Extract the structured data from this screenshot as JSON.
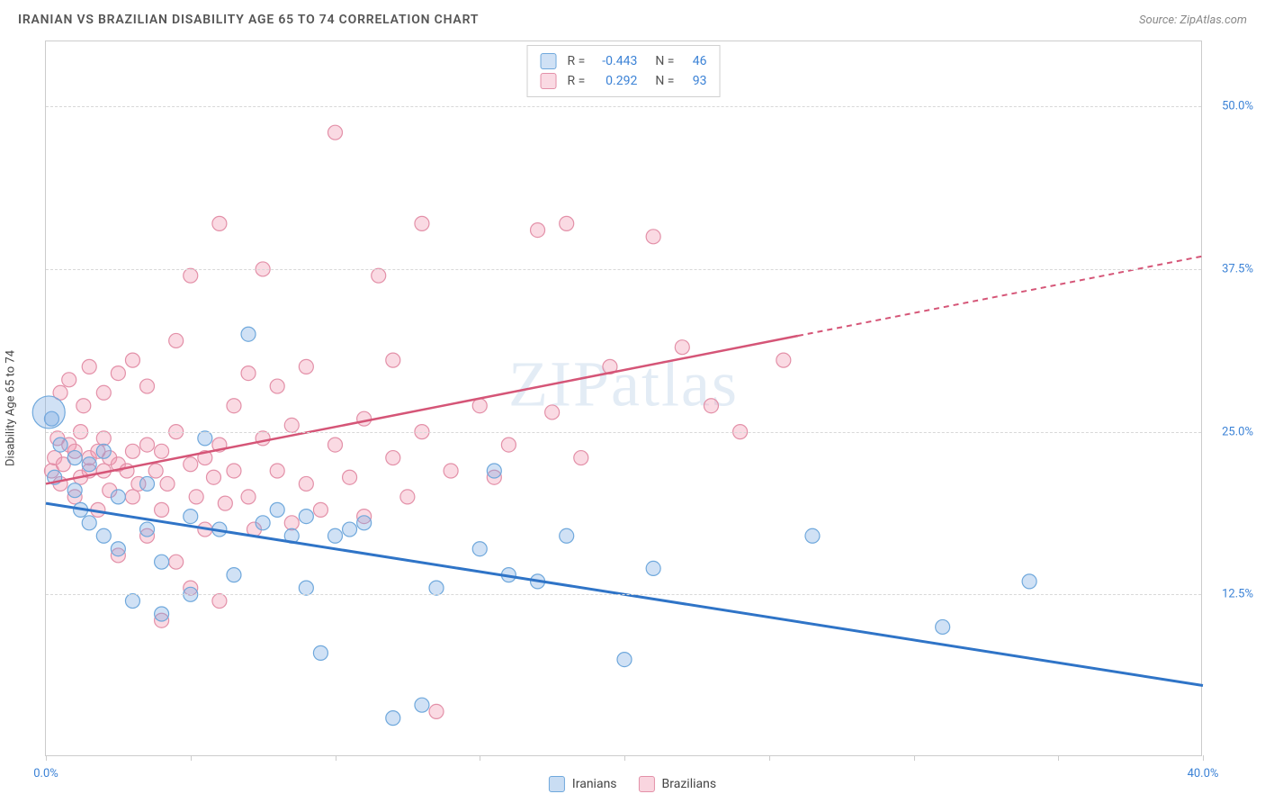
{
  "header": {
    "title": "IRANIAN VS BRAZILIAN DISABILITY AGE 65 TO 74 CORRELATION CHART",
    "source": "Source: ZipAtlas.com"
  },
  "chart": {
    "type": "scatter",
    "ylabel": "Disability Age 65 to 74",
    "watermark": "ZIPatlas",
    "xlim": [
      0,
      40
    ],
    "ylim": [
      0,
      55
    ],
    "x_ticks": [
      0,
      5,
      10,
      15,
      20,
      25,
      30,
      35,
      40
    ],
    "x_tick_labels_shown": {
      "0": "0.0%",
      "40": "40.0%"
    },
    "y_gridlines": [
      12.5,
      25.0,
      37.5,
      50.0
    ],
    "y_tick_labels": [
      "12.5%",
      "25.0%",
      "37.5%",
      "50.0%"
    ],
    "background_color": "#ffffff",
    "grid_color": "#d8d8d8",
    "axis_color": "#cccccc",
    "tick_label_color": "#3b82d6",
    "series": [
      {
        "name": "Iranians",
        "fill_color": "rgba(120,170,225,0.35)",
        "stroke_color": "#6fa8dc",
        "trend_color": "#2f74c7",
        "trend_start_y": 19.5,
        "trend_end_y": 5.5,
        "r": -0.443,
        "n": 46,
        "radius": 8,
        "points": [
          [
            0.2,
            26.0
          ],
          [
            0.3,
            21.5
          ],
          [
            0.5,
            24.0
          ],
          [
            1.0,
            23.0
          ],
          [
            1.0,
            20.5
          ],
          [
            1.2,
            19.0
          ],
          [
            1.5,
            18.0
          ],
          [
            1.5,
            22.5
          ],
          [
            2.0,
            17.0
          ],
          [
            2.0,
            23.5
          ],
          [
            2.5,
            16.0
          ],
          [
            2.5,
            20.0
          ],
          [
            3.0,
            12.0
          ],
          [
            3.5,
            21.0
          ],
          [
            3.5,
            17.5
          ],
          [
            4.0,
            15.0
          ],
          [
            4.0,
            11.0
          ],
          [
            5.0,
            18.5
          ],
          [
            5.0,
            12.5
          ],
          [
            5.5,
            24.5
          ],
          [
            6.0,
            17.5
          ],
          [
            6.5,
            14.0
          ],
          [
            7.0,
            32.5
          ],
          [
            7.5,
            18.0
          ],
          [
            8.0,
            19.0
          ],
          [
            8.5,
            17.0
          ],
          [
            9.0,
            18.5
          ],
          [
            9.0,
            13.0
          ],
          [
            9.5,
            8.0
          ],
          [
            10.0,
            17.0
          ],
          [
            10.5,
            17.5
          ],
          [
            11.0,
            18.0
          ],
          [
            12.0,
            3.0
          ],
          [
            13.0,
            4.0
          ],
          [
            13.5,
            13.0
          ],
          [
            15.0,
            16.0
          ],
          [
            15.5,
            22.0
          ],
          [
            16.0,
            14.0
          ],
          [
            17.0,
            13.5
          ],
          [
            18.0,
            17.0
          ],
          [
            20.0,
            7.5
          ],
          [
            21.0,
            14.5
          ],
          [
            26.5,
            17.0
          ],
          [
            31.0,
            10.0
          ],
          [
            34.0,
            13.5
          ]
        ],
        "large_point": [
          0.1,
          26.5,
          18
        ]
      },
      {
        "name": "Brazilians",
        "fill_color": "rgba(240,150,175,0.35)",
        "stroke_color": "#e390a8",
        "trend_color": "#d55577",
        "trend_start_y": 21.0,
        "trend_end_y": 38.5,
        "trend_dash_from_x": 26,
        "r": 0.292,
        "n": 93,
        "radius": 8,
        "points": [
          [
            0.2,
            22.0
          ],
          [
            0.3,
            23.0
          ],
          [
            0.4,
            24.5
          ],
          [
            0.5,
            21.0
          ],
          [
            0.5,
            28.0
          ],
          [
            0.6,
            22.5
          ],
          [
            0.8,
            24.0
          ],
          [
            0.8,
            29.0
          ],
          [
            1.0,
            23.5
          ],
          [
            1.0,
            20.0
          ],
          [
            1.2,
            21.5
          ],
          [
            1.2,
            25.0
          ],
          [
            1.3,
            27.0
          ],
          [
            1.5,
            22.0
          ],
          [
            1.5,
            23.0
          ],
          [
            1.5,
            30.0
          ],
          [
            1.8,
            23.5
          ],
          [
            1.8,
            19.0
          ],
          [
            2.0,
            22.0
          ],
          [
            2.0,
            28.0
          ],
          [
            2.0,
            24.5
          ],
          [
            2.2,
            20.5
          ],
          [
            2.2,
            23.0
          ],
          [
            2.5,
            22.5
          ],
          [
            2.5,
            29.5
          ],
          [
            2.5,
            15.5
          ],
          [
            2.8,
            22.0
          ],
          [
            3.0,
            23.5
          ],
          [
            3.0,
            20.0
          ],
          [
            3.0,
            30.5
          ],
          [
            3.2,
            21.0
          ],
          [
            3.5,
            24.0
          ],
          [
            3.5,
            17.0
          ],
          [
            3.5,
            28.5
          ],
          [
            3.8,
            22.0
          ],
          [
            4.0,
            19.0
          ],
          [
            4.0,
            23.5
          ],
          [
            4.0,
            10.5
          ],
          [
            4.2,
            21.0
          ],
          [
            4.5,
            25.0
          ],
          [
            4.5,
            32.0
          ],
          [
            4.5,
            15.0
          ],
          [
            5.0,
            22.5
          ],
          [
            5.0,
            13.0
          ],
          [
            5.0,
            37.0
          ],
          [
            5.2,
            20.0
          ],
          [
            5.5,
            23.0
          ],
          [
            5.5,
            17.5
          ],
          [
            5.8,
            21.5
          ],
          [
            6.0,
            24.0
          ],
          [
            6.0,
            41.0
          ],
          [
            6.0,
            12.0
          ],
          [
            6.2,
            19.5
          ],
          [
            6.5,
            22.0
          ],
          [
            6.5,
            27.0
          ],
          [
            7.0,
            29.5
          ],
          [
            7.0,
            20.0
          ],
          [
            7.2,
            17.5
          ],
          [
            7.5,
            24.5
          ],
          [
            7.5,
            37.5
          ],
          [
            8.0,
            22.0
          ],
          [
            8.0,
            28.5
          ],
          [
            8.5,
            18.0
          ],
          [
            8.5,
            25.5
          ],
          [
            9.0,
            21.0
          ],
          [
            9.0,
            30.0
          ],
          [
            9.5,
            19.0
          ],
          [
            10.0,
            24.0
          ],
          [
            10.0,
            48.0
          ],
          [
            10.5,
            21.5
          ],
          [
            11.0,
            26.0
          ],
          [
            11.0,
            18.5
          ],
          [
            11.5,
            37.0
          ],
          [
            12.0,
            23.0
          ],
          [
            12.0,
            30.5
          ],
          [
            12.5,
            20.0
          ],
          [
            13.0,
            25.0
          ],
          [
            13.0,
            41.0
          ],
          [
            13.5,
            3.5
          ],
          [
            14.0,
            22.0
          ],
          [
            15.0,
            27.0
          ],
          [
            15.5,
            21.5
          ],
          [
            16.0,
            24.0
          ],
          [
            17.0,
            40.5
          ],
          [
            17.5,
            26.5
          ],
          [
            18.0,
            41.0
          ],
          [
            18.5,
            23.0
          ],
          [
            19.5,
            30.0
          ],
          [
            21.0,
            40.0
          ],
          [
            22.0,
            31.5
          ],
          [
            23.0,
            27.0
          ],
          [
            24.0,
            25.0
          ],
          [
            25.5,
            30.5
          ]
        ]
      }
    ],
    "legend_top": {
      "r_label": "R =",
      "n_label": "N ="
    },
    "legend_bottom": [
      {
        "label": "Iranians",
        "fill": "rgba(120,170,225,0.4)",
        "stroke": "#6fa8dc"
      },
      {
        "label": "Brazilians",
        "fill": "rgba(240,150,175,0.4)",
        "stroke": "#e390a8"
      }
    ]
  }
}
